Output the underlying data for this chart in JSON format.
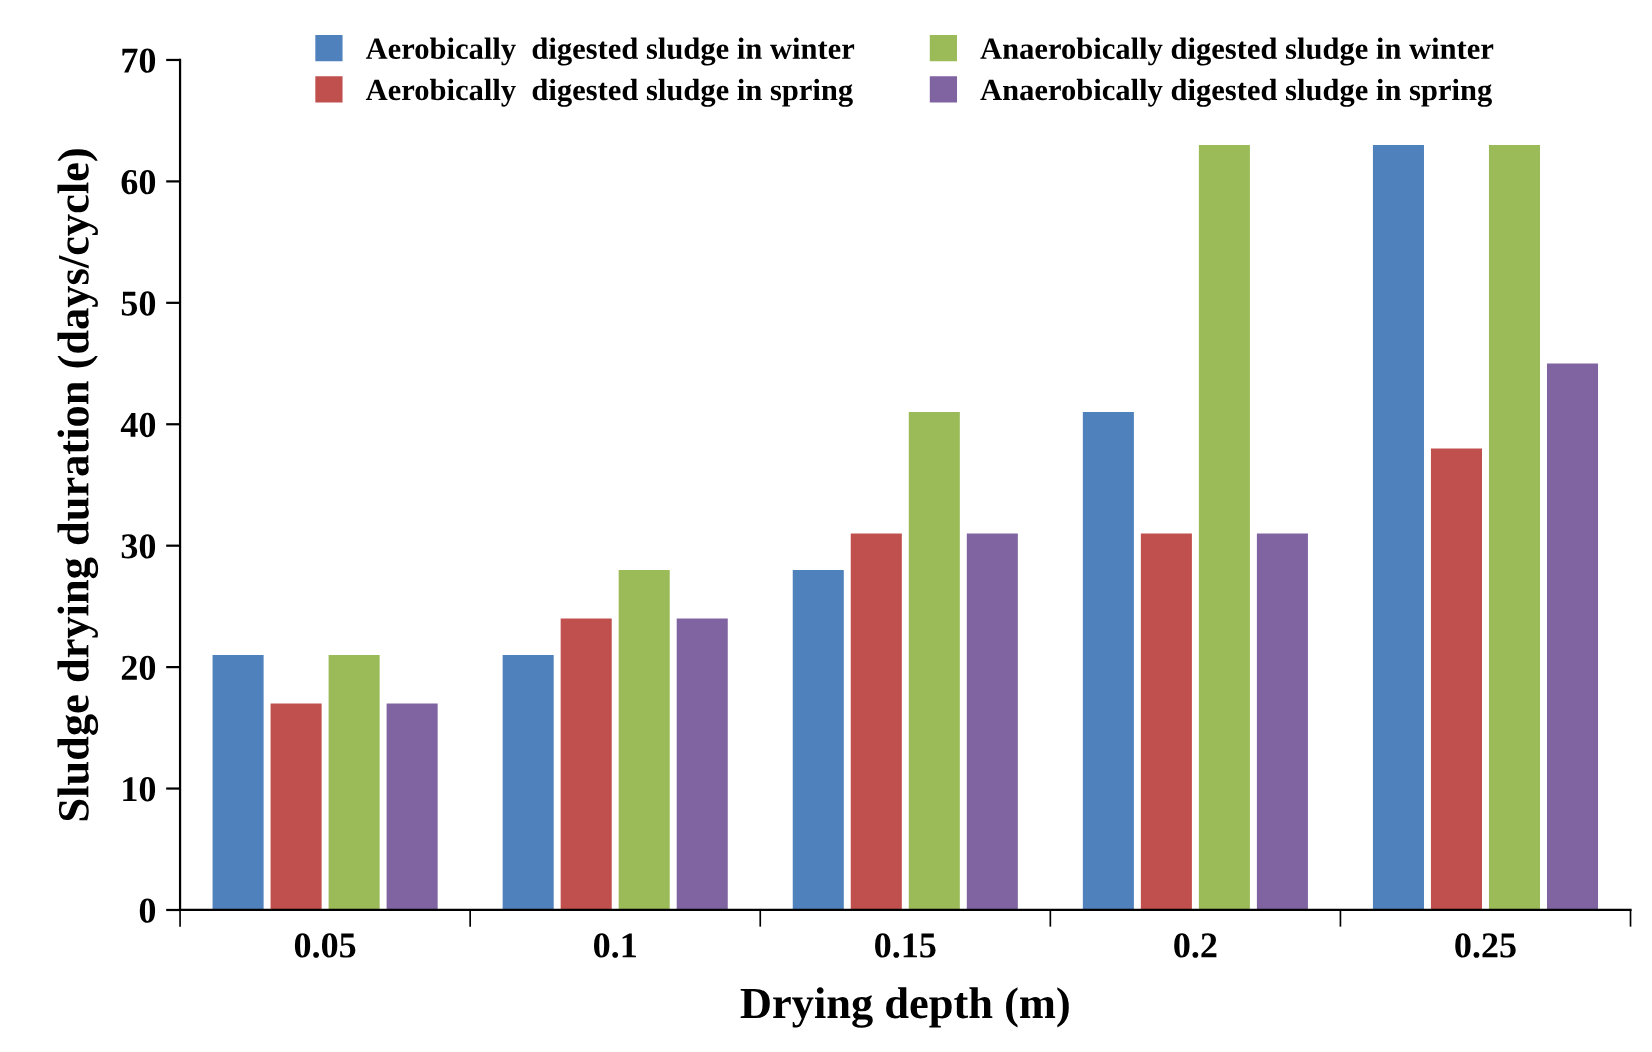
{
  "chart_data": {
    "type": "bar",
    "xlabel": "Drying depth (m)",
    "ylabel": "Sludge drying duration (days/cycle)",
    "categories": [
      "0.05",
      "0.1",
      "0.15",
      "0.2",
      "0.25"
    ],
    "series": [
      {
        "name": "Aerobically  digested sludge in winter",
        "color": "#4f81bd",
        "values": [
          21,
          21,
          28,
          41,
          63
        ]
      },
      {
        "name": "Aerobically  digested sludge in spring",
        "color": "#c0504d",
        "values": [
          17,
          24,
          31,
          31,
          38
        ]
      },
      {
        "name": "Anaerobically digested sludge in winter",
        "color": "#9bbb59",
        "values": [
          21,
          28,
          41,
          63,
          63
        ]
      },
      {
        "name": "Anaerobically digested sludge in spring",
        "color": "#8064a2",
        "values": [
          17,
          24,
          31,
          31,
          45
        ]
      }
    ],
    "ylim": [
      0,
      70
    ],
    "yticks": [
      0,
      10,
      20,
      30,
      40,
      50,
      60,
      70
    ],
    "grid": false,
    "legend": "top"
  }
}
